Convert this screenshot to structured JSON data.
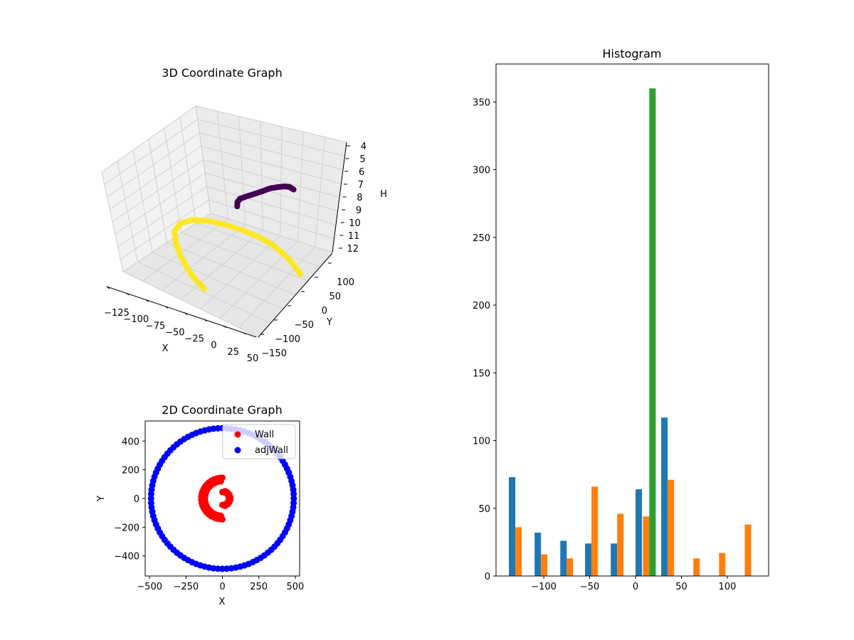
{
  "figure": {
    "panel_3d": {
      "title": "3D Coordinate Graph",
      "xlabel": "X",
      "ylabel": "Y",
      "zlabel": "H",
      "x_ticks": [
        "−125",
        "−100",
        "−75",
        "−50",
        "−25",
        "0",
        "25",
        "50"
      ],
      "y_ticks": [
        "−150",
        "−100",
        "−50",
        "0",
        "50",
        "100"
      ],
      "z_ticks": [
        "4",
        "5",
        "6",
        "7",
        "8",
        "9",
        "10",
        "11",
        "12"
      ]
    },
    "panel_2d": {
      "title": "2D Coordinate Graph",
      "xlabel": "X",
      "ylabel": "Y",
      "x_ticks": [
        "−500",
        "−250",
        "0",
        "250",
        "500"
      ],
      "y_ticks": [
        "−400",
        "−200",
        "0",
        "200",
        "400"
      ],
      "legend": [
        {
          "label": "Wall",
          "color": "#ff0000"
        },
        {
          "label": "adjWall",
          "color": "#0000ff"
        }
      ]
    },
    "panel_hist": {
      "title": "Histogram",
      "x_ticks": [
        "−100",
        "−50",
        "0",
        "50",
        "100"
      ],
      "y_ticks": [
        "0",
        "50",
        "100",
        "150",
        "200",
        "250",
        "300",
        "350"
      ]
    }
  },
  "chart_data": [
    {
      "type": "scatter",
      "projection": "3d",
      "title": "3D Coordinate Graph",
      "xlabel": "X",
      "ylabel": "Y",
      "zlabel": "H",
      "xlim": [
        -135,
        55
      ],
      "ylim": [
        -160,
        120
      ],
      "zlim": [
        12,
        4
      ],
      "z_axis_inverted": true,
      "grid": true,
      "series": [
        {
          "color": "#440154",
          "x": [
            20,
            10,
            0,
            -10,
            -20,
            -28,
            -35,
            -40,
            -42,
            -40,
            -35
          ],
          "y": [
            90,
            98,
            102,
            100,
            95,
            85,
            72,
            58,
            45,
            32,
            20
          ],
          "z": [
            5.3,
            5.5,
            5.8,
            6.1,
            6.4,
            6.7,
            6.9,
            7.0,
            7.0,
            7.0,
            7.0
          ]
        },
        {
          "color": "#fde725",
          "x": [
            30,
            10,
            -10,
            -30,
            -50,
            -70,
            -90,
            -110,
            -125,
            -130,
            -125,
            -110,
            -90,
            -70,
            -50,
            -30
          ],
          "y": [
            40,
            60,
            75,
            85,
            88,
            85,
            78,
            65,
            45,
            20,
            -10,
            -40,
            -70,
            -95,
            -115,
            -130
          ],
          "z": [
            11,
            11,
            11,
            11,
            11,
            11,
            11,
            11,
            11,
            11,
            11,
            11,
            11,
            11,
            11,
            11
          ]
        }
      ]
    },
    {
      "type": "scatter",
      "title": "2D Coordinate Graph",
      "xlabel": "X",
      "ylabel": "Y",
      "xlim": [
        -530,
        530
      ],
      "ylim": [
        -540,
        540
      ],
      "legend_position": "upper right",
      "series": [
        {
          "name": "Wall",
          "color": "#ff0000",
          "shapes": [
            {
              "kind": "arc",
              "cx": 0,
              "cy": 0,
              "r": 145,
              "from_deg": 90,
              "to_deg": 270,
              "count": 24
            },
            {
              "kind": "arc",
              "cx": 0,
              "cy": 0,
              "r": 120,
              "from_deg": 95,
              "to_deg": 265,
              "count": 20
            },
            {
              "kind": "arc",
              "cx": 0,
              "cy": 0,
              "r": 45,
              "from_deg": -90,
              "to_deg": 90,
              "count": 10
            },
            {
              "kind": "arc",
              "cx": 0,
              "cy": 0,
              "r": 55,
              "from_deg": -70,
              "to_deg": 70,
              "count": 8
            }
          ]
        },
        {
          "name": "adjWall",
          "color": "#0000ff",
          "shapes": [
            {
              "kind": "circle",
              "cx": 0,
              "cy": 0,
              "r": 490,
              "count": 100
            }
          ]
        }
      ]
    },
    {
      "type": "bar",
      "title": "Histogram",
      "xlim": [
        -152,
        145
      ],
      "ylim": [
        0,
        378
      ],
      "series": [
        {
          "color": "#1f77b4",
          "bins": [
            {
              "x0": -138,
              "x1": -131,
              "value": 73
            },
            {
              "x0": -110,
              "x1": -103,
              "value": 32
            },
            {
              "x0": -82,
              "x1": -75,
              "value": 26
            },
            {
              "x0": -55,
              "x1": -48,
              "value": 24
            },
            {
              "x0": -27,
              "x1": -20,
              "value": 24
            },
            {
              "x0": 0,
              "x1": 7,
              "value": 64
            },
            {
              "x0": 28,
              "x1": 35,
              "value": 117
            }
          ]
        },
        {
          "color": "#ff7f0e",
          "bins": [
            {
              "x0": -131,
              "x1": -124,
              "value": 36
            },
            {
              "x0": -103,
              "x1": -96,
              "value": 16
            },
            {
              "x0": -75,
              "x1": -68,
              "value": 13
            },
            {
              "x0": -48,
              "x1": -41,
              "value": 66
            },
            {
              "x0": -20,
              "x1": -13,
              "value": 46
            },
            {
              "x0": 8,
              "x1": 15,
              "value": 44
            },
            {
              "x0": 35,
              "x1": 42,
              "value": 71
            },
            {
              "x0": 63,
              "x1": 70,
              "value": 13
            },
            {
              "x0": 91,
              "x1": 98,
              "value": 17
            },
            {
              "x0": 119,
              "x1": 126,
              "value": 38
            }
          ]
        },
        {
          "color": "#2ca02c",
          "bins": [
            {
              "x0": 15,
              "x1": 22,
              "value": 360
            }
          ]
        }
      ]
    }
  ]
}
